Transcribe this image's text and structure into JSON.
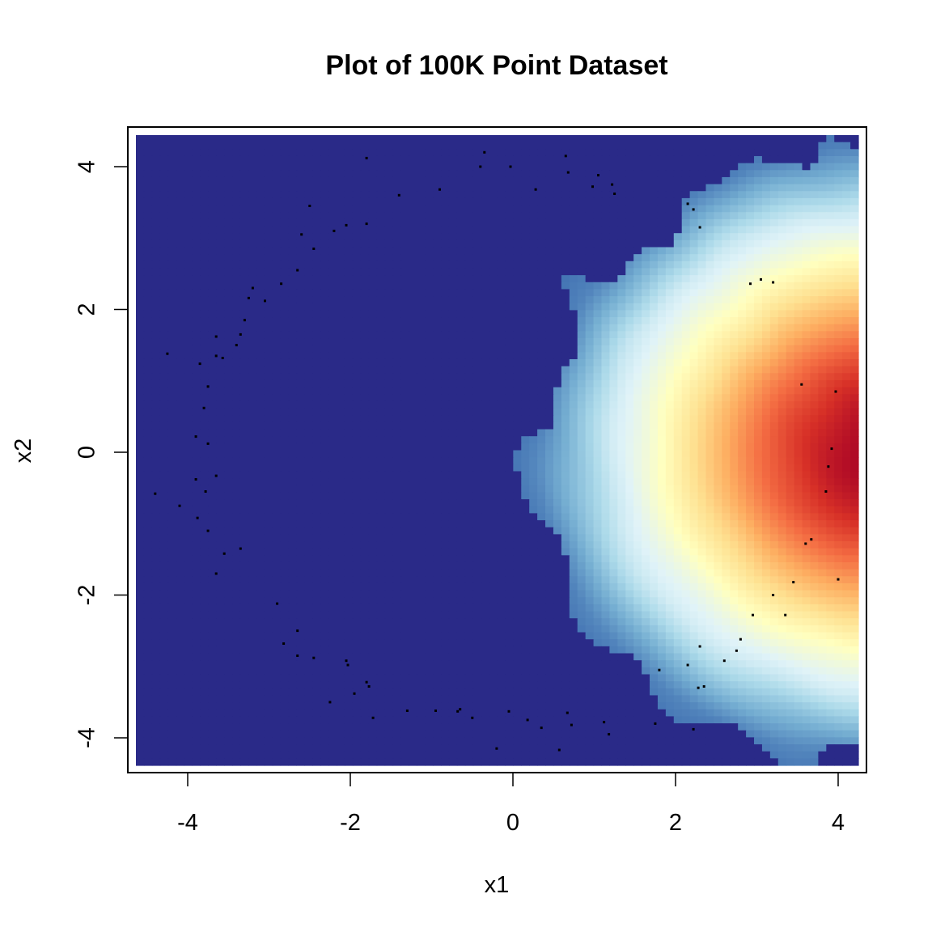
{
  "chart_data": {
    "type": "heatmap",
    "title": "Plot of 100K Point Dataset",
    "xlabel": "x1",
    "ylabel": "x2",
    "xlim": [
      -4.6,
      4.2
    ],
    "ylim": [
      -4.4,
      4.4
    ],
    "x_ticks": [
      -4,
      -2,
      0,
      2,
      4
    ],
    "y_ticks": [
      -4,
      -2,
      0,
      2,
      4
    ],
    "x_tick_labels": [
      "-4",
      "-2",
      "0",
      "2",
      "4"
    ],
    "y_tick_labels": [
      "-4",
      "-2",
      "0",
      "2",
      "4"
    ],
    "density": {
      "distribution": "bivariate standard normal",
      "center": [
        0,
        0
      ],
      "sd": 1.6,
      "grid_cells": 90
    },
    "colormap": [
      "#2A2A88",
      "#4575B4",
      "#74ADD1",
      "#ABD9E9",
      "#E0F3F8",
      "#FFFFBF",
      "#FEE090",
      "#FDAE61",
      "#F46D43",
      "#D73027",
      "#A50026"
    ],
    "grid": false,
    "legend": "none",
    "outlier_points": [
      [
        -0.35,
        4.2
      ],
      [
        0.65,
        4.15
      ],
      [
        -1.8,
        4.12
      ],
      [
        -0.4,
        4.0
      ],
      [
        -0.03,
        4.0
      ],
      [
        0.68,
        3.92
      ],
      [
        1.05,
        3.88
      ],
      [
        1.22,
        3.75
      ],
      [
        0.98,
        3.72
      ],
      [
        0.28,
        3.68
      ],
      [
        -0.9,
        3.68
      ],
      [
        1.25,
        3.62
      ],
      [
        -1.4,
        3.6
      ],
      [
        2.15,
        3.48
      ],
      [
        2.22,
        3.4
      ],
      [
        -2.5,
        3.45
      ],
      [
        -1.8,
        3.2
      ],
      [
        -2.05,
        3.18
      ],
      [
        2.3,
        3.15
      ],
      [
        -2.2,
        3.1
      ],
      [
        -2.6,
        3.05
      ],
      [
        -2.45,
        2.85
      ],
      [
        -2.65,
        2.55
      ],
      [
        3.05,
        2.42
      ],
      [
        3.2,
        2.38
      ],
      [
        2.92,
        2.36
      ],
      [
        -2.85,
        2.36
      ],
      [
        -3.2,
        2.3
      ],
      [
        -3.25,
        2.16
      ],
      [
        -3.05,
        2.12
      ],
      [
        -3.3,
        1.85
      ],
      [
        -3.35,
        1.65
      ],
      [
        -3.65,
        1.62
      ],
      [
        -3.4,
        1.5
      ],
      [
        -4.25,
        1.38
      ],
      [
        -3.65,
        1.35
      ],
      [
        -3.57,
        1.32
      ],
      [
        -3.85,
        1.24
      ],
      [
        3.55,
        0.95
      ],
      [
        -3.75,
        0.92
      ],
      [
        3.97,
        0.85
      ],
      [
        -3.8,
        0.62
      ],
      [
        -3.9,
        0.22
      ],
      [
        -3.75,
        0.12
      ],
      [
        3.92,
        0.05
      ],
      [
        3.88,
        -0.2
      ],
      [
        -3.65,
        -0.33
      ],
      [
        -3.9,
        -0.38
      ],
      [
        -4.4,
        -0.58
      ],
      [
        -3.78,
        -0.55
      ],
      [
        3.85,
        -0.55
      ],
      [
        -4.1,
        -0.75
      ],
      [
        -3.88,
        -0.92
      ],
      [
        -3.75,
        -1.1
      ],
      [
        3.67,
        -1.22
      ],
      [
        3.6,
        -1.28
      ],
      [
        -3.35,
        -1.35
      ],
      [
        -3.55,
        -1.42
      ],
      [
        -3.65,
        -1.7
      ],
      [
        4.0,
        -1.78
      ],
      [
        3.45,
        -1.82
      ],
      [
        3.2,
        -2.0
      ],
      [
        -2.9,
        -2.12
      ],
      [
        2.95,
        -2.28
      ],
      [
        3.35,
        -2.28
      ],
      [
        -2.65,
        -2.5
      ],
      [
        2.8,
        -2.62
      ],
      [
        -2.82,
        -2.68
      ],
      [
        2.3,
        -2.72
      ],
      [
        2.75,
        -2.78
      ],
      [
        -2.65,
        -2.85
      ],
      [
        -2.45,
        -2.88
      ],
      [
        2.6,
        -2.92
      ],
      [
        -2.05,
        -2.92
      ],
      [
        -2.03,
        -2.98
      ],
      [
        2.15,
        -2.98
      ],
      [
        1.8,
        -3.05
      ],
      [
        -1.8,
        -3.22
      ],
      [
        -1.77,
        -3.28
      ],
      [
        2.35,
        -3.28
      ],
      [
        2.28,
        -3.3
      ],
      [
        -1.95,
        -3.38
      ],
      [
        -2.25,
        -3.5
      ],
      [
        -0.65,
        -3.6
      ],
      [
        -1.3,
        -3.62
      ],
      [
        -0.95,
        -3.62
      ],
      [
        -0.68,
        -3.63
      ],
      [
        -0.05,
        -3.63
      ],
      [
        0.67,
        -3.65
      ],
      [
        -0.5,
        -3.72
      ],
      [
        -1.72,
        -3.72
      ],
      [
        0.18,
        -3.75
      ],
      [
        1.12,
        -3.78
      ],
      [
        1.75,
        -3.8
      ],
      [
        0.72,
        -3.82
      ],
      [
        0.35,
        -3.86
      ],
      [
        2.22,
        -3.88
      ],
      [
        1.18,
        -3.95
      ],
      [
        -0.2,
        -4.15
      ],
      [
        0.57,
        -4.17
      ]
    ]
  }
}
